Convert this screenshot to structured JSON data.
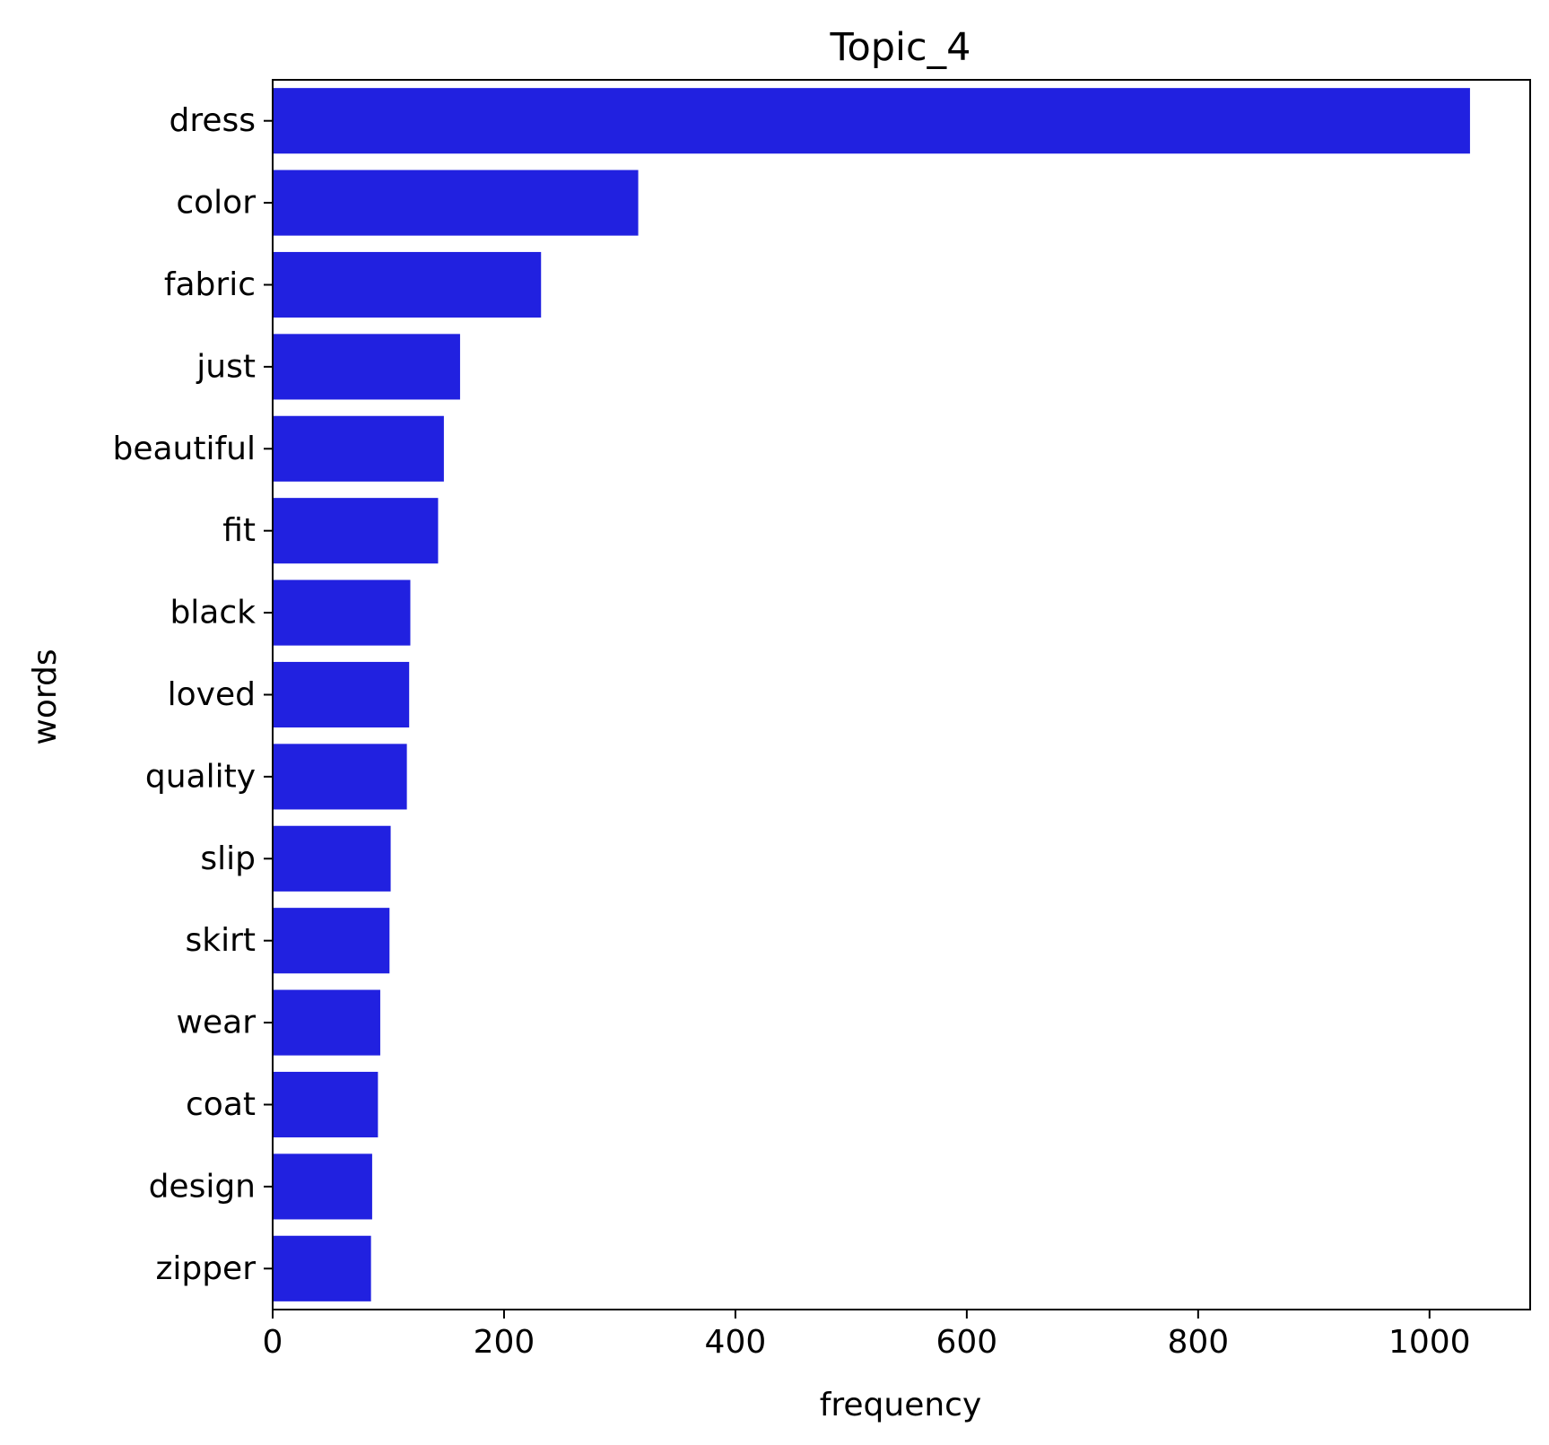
{
  "chart_data": {
    "type": "bar",
    "orientation": "horizontal",
    "title": "Topic_4",
    "xlabel": "frequency",
    "ylabel": "words",
    "categories": [
      "dress",
      "color",
      "fabric",
      "just",
      "beautiful",
      "fit",
      "black",
      "loved",
      "quality",
      "slip",
      "skirt",
      "wear",
      "coat",
      "design",
      "zipper"
    ],
    "values": [
      1035,
      316,
      232,
      162,
      148,
      143,
      119,
      118,
      116,
      102,
      101,
      93,
      91,
      86,
      85
    ],
    "xlim": [
      0,
      1087
    ],
    "xticks": [
      0,
      200,
      400,
      600,
      800,
      1000
    ],
    "grid": false,
    "legend": "none",
    "bar_color": "#2121e0"
  }
}
